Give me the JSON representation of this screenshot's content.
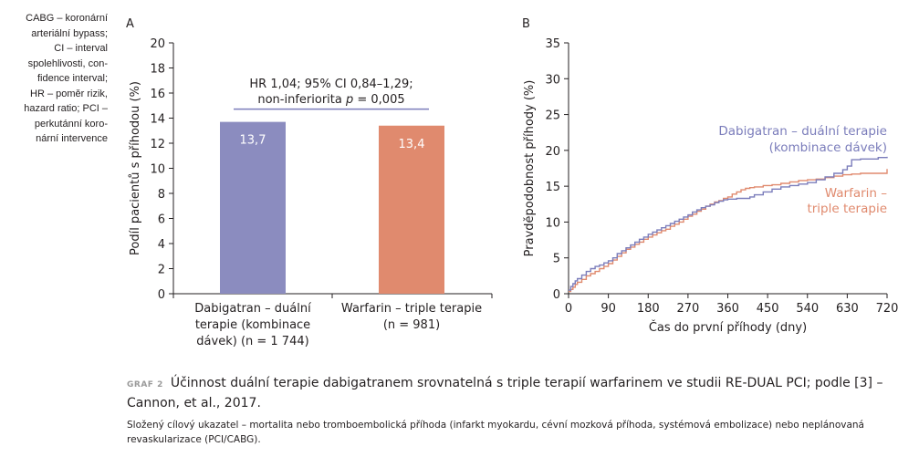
{
  "sidebar_note": {
    "lines": [
      "CABG – koronární",
      "arteriální bypass;",
      "CI – interval",
      "spolehlivosti, con-",
      "fidence interval;",
      "HR – poměr rizik,",
      "hazard ratio; PCI –",
      "perkutánní koro-",
      "nární intervence"
    ]
  },
  "caption": {
    "label": "GRAF 2",
    "text": "Účinnost duální terapie dabigatranem srovnatelná s triple terapií warfarinem ve studii RE-DUAL PCI; podle [3] – Cannon, et al., 2017.",
    "note": "Složený cílový ukazatel – mortalita nebo tromboembolická příhoda (infarkt myokardu, cévní mozková příhoda, systémová embolizace) nebo neplánovaná revaskularizace (PCI/CABG)."
  },
  "chart_data": [
    {
      "panel": "A",
      "type": "bar",
      "ylabel": "Podíl pacientů s příhodou (%)",
      "ylim": [
        0,
        20
      ],
      "yticks": [
        "0",
        "2",
        "4",
        "6",
        "8",
        "10",
        "12",
        "14",
        "16",
        "18",
        "20"
      ],
      "categories": [
        [
          "Dabigatran – duální",
          "terapie (kombinace",
          "dávek) (n = 1 744)"
        ],
        [
          "Warfarin – triple terapie",
          "(n = 981)"
        ]
      ],
      "values": [
        13.7,
        13.4
      ],
      "value_labels": [
        "13,7",
        "13,4"
      ],
      "colors": [
        "#8b8cbf",
        "#e08a6e"
      ],
      "annotation": {
        "line1": "HR 1,04; 95% CI 0,84–1,29;",
        "line2_prefix": "non-inferiorita ",
        "line2_p": "p",
        "line2_suffix": " = 0,005",
        "bracket_y": 14.5,
        "bracket_color": "#7b7dbb"
      }
    },
    {
      "panel": "B",
      "type": "line",
      "xlabel": "Čas do první příhody (dny)",
      "ylabel": "Pravděpodobnost příhody (%)",
      "xlim": [
        0,
        720
      ],
      "ylim": [
        0,
        35
      ],
      "xticks": [
        "0",
        "90",
        "180",
        "270",
        "360",
        "450",
        "540",
        "630",
        "720"
      ],
      "yticks": [
        "0",
        "5",
        "10",
        "15",
        "20",
        "25",
        "30",
        "35"
      ],
      "series": [
        {
          "name": "Dabigatran – duální terapie (kombinace dávek)",
          "label_lines": [
            "Dabigatran – duální terapie",
            "(kombinace dávek)"
          ],
          "color": "#7b7dbb",
          "x": [
            0,
            5,
            10,
            15,
            20,
            30,
            40,
            50,
            60,
            70,
            80,
            90,
            100,
            110,
            120,
            130,
            140,
            150,
            160,
            170,
            180,
            190,
            200,
            210,
            220,
            230,
            240,
            250,
            260,
            270,
            280,
            290,
            300,
            310,
            320,
            330,
            340,
            350,
            360,
            370,
            380,
            390,
            400,
            410,
            420,
            440,
            460,
            480,
            500,
            520,
            540,
            560,
            580,
            600,
            620,
            630,
            640,
            660,
            680,
            700,
            720
          ],
          "y": [
            0.5,
            1.0,
            1.4,
            1.8,
            2.1,
            2.6,
            3.1,
            3.5,
            3.8,
            4.0,
            4.3,
            4.6,
            5.0,
            5.6,
            6.0,
            6.4,
            6.8,
            7.2,
            7.6,
            7.9,
            8.3,
            8.6,
            8.9,
            9.2,
            9.5,
            9.8,
            10.1,
            10.4,
            10.7,
            11.0,
            11.4,
            11.7,
            12.0,
            12.2,
            12.4,
            12.7,
            12.9,
            13.1,
            13.2,
            13.2,
            13.3,
            13.3,
            13.3,
            13.5,
            13.8,
            14.2,
            14.6,
            14.9,
            15.1,
            15.3,
            15.5,
            15.9,
            16.3,
            16.8,
            17.3,
            17.8,
            18.7,
            18.8,
            18.8,
            19.0,
            19.1
          ]
        },
        {
          "name": "Warfarin – triple terapie",
          "label_lines": [
            "Warfarin –",
            "triple terapie"
          ],
          "color": "#e08a6e",
          "x": [
            0,
            5,
            10,
            15,
            20,
            30,
            40,
            50,
            60,
            70,
            80,
            90,
            100,
            110,
            120,
            130,
            140,
            150,
            160,
            170,
            180,
            190,
            200,
            210,
            220,
            230,
            240,
            250,
            260,
            270,
            280,
            290,
            300,
            310,
            320,
            330,
            340,
            350,
            360,
            370,
            380,
            390,
            400,
            410,
            420,
            440,
            460,
            480,
            500,
            520,
            540,
            560,
            580,
            600,
            620,
            640,
            660,
            680,
            700,
            715,
            720
          ],
          "y": [
            0.3,
            0.6,
            0.9,
            1.3,
            1.6,
            2.0,
            2.5,
            2.8,
            3.1,
            3.5,
            3.8,
            4.2,
            4.7,
            5.2,
            5.7,
            6.2,
            6.5,
            6.9,
            7.2,
            7.6,
            7.9,
            8.2,
            8.5,
            8.8,
            9.0,
            9.4,
            9.7,
            10.0,
            10.4,
            10.8,
            11.1,
            11.5,
            11.8,
            12.2,
            12.5,
            12.8,
            13.0,
            13.3,
            13.5,
            13.9,
            14.2,
            14.5,
            14.7,
            14.8,
            14.9,
            15.1,
            15.2,
            15.4,
            15.6,
            15.8,
            15.9,
            16.0,
            16.2,
            16.4,
            16.6,
            16.7,
            16.8,
            16.8,
            16.8,
            16.8,
            17.4
          ]
        }
      ]
    }
  ]
}
